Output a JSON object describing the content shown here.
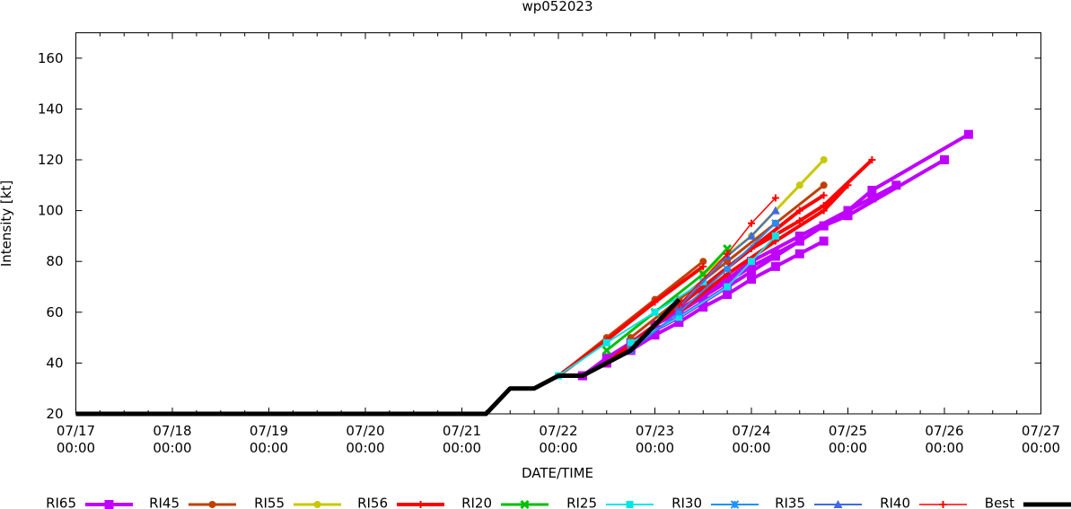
{
  "chart_data": {
    "type": "line",
    "title": "wp052023",
    "xlabel": "DATE/TIME",
    "ylabel": "Intensity [kt]",
    "ylim": [
      20,
      170
    ],
    "xlim": [
      "07/17 00:00",
      "07/27 00:00"
    ],
    "yticks": [
      20,
      40,
      60,
      80,
      100,
      120,
      140,
      160
    ],
    "xticks": [
      {
        "top": "07/17",
        "bottom": "00:00"
      },
      {
        "top": "07/18",
        "bottom": "00:00"
      },
      {
        "top": "07/19",
        "bottom": "00:00"
      },
      {
        "top": "07/20",
        "bottom": "00:00"
      },
      {
        "top": "07/21",
        "bottom": "00:00"
      },
      {
        "top": "07/22",
        "bottom": "00:00"
      },
      {
        "top": "07/23",
        "bottom": "00:00"
      },
      {
        "top": "07/24",
        "bottom": "00:00"
      },
      {
        "top": "07/25",
        "bottom": "00:00"
      },
      {
        "top": "07/26",
        "bottom": "00:00"
      },
      {
        "top": "07/27",
        "bottom": "00:00"
      }
    ],
    "grid": false,
    "legend_position": "bottom",
    "x_units": "days since 07/17 00:00",
    "series": [
      {
        "name": "RI65",
        "color": "#bf00ff",
        "marker": "square",
        "width": 4,
        "lines": [
          [
            [
              5.25,
              35
            ],
            [
              5.5,
              40
            ],
            [
              5.75,
              45
            ],
            [
              6.0,
              51
            ],
            [
              6.25,
              56
            ],
            [
              6.5,
              62
            ],
            [
              6.75,
              67
            ],
            [
              7.0,
              73
            ],
            [
              7.25,
              78
            ],
            [
              7.5,
              83
            ],
            [
              7.75,
              88
            ]
          ],
          [
            [
              5.25,
              35
            ],
            [
              5.5,
              42
            ],
            [
              5.75,
              48
            ],
            [
              6.0,
              55
            ],
            [
              6.25,
              60
            ],
            [
              6.5,
              66
            ],
            [
              6.75,
              72
            ],
            [
              7.0,
              78
            ],
            [
              7.25,
              83
            ],
            [
              7.5,
              88
            ],
            [
              7.75,
              94
            ],
            [
              8.0,
              100
            ],
            [
              8.25,
              105
            ],
            [
              8.5,
              110
            ]
          ],
          [
            [
              5.5,
              40
            ],
            [
              5.75,
              46
            ],
            [
              6.0,
              53
            ],
            [
              6.25,
              58
            ],
            [
              6.5,
              64
            ],
            [
              6.75,
              70
            ],
            [
              7.0,
              76
            ],
            [
              7.25,
              82
            ],
            [
              7.5,
              88
            ],
            [
              7.75,
              94
            ],
            [
              8.0,
              98
            ],
            [
              9.0,
              120
            ]
          ],
          [
            [
              5.75,
              45
            ],
            [
              6.0,
              55
            ],
            [
              6.25,
              61
            ],
            [
              6.5,
              67
            ],
            [
              6.75,
              73
            ],
            [
              7.0,
              80
            ],
            [
              7.5,
              90
            ],
            [
              8.0,
              100
            ],
            [
              8.25,
              108
            ],
            [
              9.25,
              130
            ]
          ]
        ]
      },
      {
        "name": "RI45",
        "color": "#c04000",
        "marker": "circle",
        "width": 3,
        "lines": [
          [
            [
              5.0,
              35
            ],
            [
              5.5,
              50
            ],
            [
              6.0,
              65
            ],
            [
              6.5,
              80
            ]
          ],
          [
            [
              5.75,
              50
            ],
            [
              6.25,
              65
            ],
            [
              6.75,
              80
            ],
            [
              7.25,
              95
            ],
            [
              7.75,
              110
            ]
          ]
        ]
      },
      {
        "name": "RI55",
        "color": "#c8c800",
        "marker": "circle",
        "width": 3,
        "lines": [
          [
            [
              6.5,
              75
            ],
            [
              7.0,
              90
            ],
            [
              7.5,
              110
            ],
            [
              7.75,
              120
            ]
          ]
        ]
      },
      {
        "name": "RI56",
        "color": "#ff0000",
        "marker": "plus",
        "width": 4,
        "lines": [
          [
            [
              5.0,
              35
            ],
            [
              5.5,
              49
            ],
            [
              6.0,
              64
            ],
            [
              6.5,
              78
            ]
          ],
          [
            [
              5.5,
              40
            ],
            [
              6.0,
              55
            ],
            [
              6.5,
              70
            ],
            [
              7.0,
              85
            ],
            [
              7.5,
              100
            ],
            [
              7.75,
              106
            ]
          ],
          [
            [
              6.0,
              55
            ],
            [
              6.5,
              70
            ],
            [
              7.0,
              85
            ],
            [
              7.5,
              96
            ],
            [
              7.75,
              102
            ],
            [
              8.25,
              120
            ]
          ],
          [
            [
              6.25,
              60
            ],
            [
              6.75,
              75
            ],
            [
              7.25,
              88
            ],
            [
              7.75,
              100
            ],
            [
              8.0,
              110
            ]
          ]
        ]
      },
      {
        "name": "RI20",
        "color": "#00c000",
        "marker": "cross",
        "width": 3,
        "lines": [
          [
            [
              5.5,
              45
            ],
            [
              6.0,
              60
            ],
            [
              6.5,
              75
            ],
            [
              6.75,
              85
            ]
          ]
        ]
      },
      {
        "name": "RI25",
        "color": "#00e5e5",
        "marker": "square",
        "width": 2,
        "lines": [
          [
            [
              5.0,
              35
            ],
            [
              5.5,
              48
            ],
            [
              6.0,
              60
            ],
            [
              6.5,
              72
            ]
          ],
          [
            [
              5.75,
              48
            ],
            [
              6.25,
              58
            ],
            [
              6.75,
              70
            ],
            [
              7.0,
              80
            ],
            [
              7.25,
              90
            ]
          ]
        ]
      },
      {
        "name": "RI30",
        "color": "#1e90ff",
        "marker": "star",
        "width": 2,
        "lines": [
          [
            [
              5.75,
              45
            ],
            [
              6.25,
              60
            ],
            [
              6.75,
              77
            ],
            [
              7.25,
              95
            ]
          ]
        ]
      },
      {
        "name": "RI35",
        "color": "#4169e1",
        "marker": "triangle",
        "width": 2,
        "lines": [
          [
            [
              6.25,
              62
            ],
            [
              6.75,
              82
            ],
            [
              7.0,
              90
            ],
            [
              7.25,
              100
            ]
          ]
        ]
      },
      {
        "name": "RI40",
        "color": "#ff0000",
        "marker": "plus",
        "width": 1.5,
        "lines": [
          [
            [
              6.25,
              63
            ],
            [
              6.75,
              83
            ],
            [
              7.0,
              95
            ],
            [
              7.25,
              105
            ]
          ]
        ]
      },
      {
        "name": "Best",
        "color": "#000000",
        "marker": "none",
        "width": 5,
        "lines": [
          [
            [
              0,
              20
            ],
            [
              4.25,
              20
            ],
            [
              4.5,
              30
            ],
            [
              4.75,
              30
            ],
            [
              5.0,
              35
            ],
            [
              5.25,
              35
            ],
            [
              5.5,
              40
            ],
            [
              5.75,
              45
            ],
            [
              6.0,
              55
            ],
            [
              6.25,
              65
            ]
          ]
        ]
      }
    ]
  },
  "legend": [
    {
      "label": "RI65"
    },
    {
      "label": "RI45"
    },
    {
      "label": "RI55"
    },
    {
      "label": "RI56"
    },
    {
      "label": "RI20"
    },
    {
      "label": "RI25"
    },
    {
      "label": "RI30"
    },
    {
      "label": "RI35"
    },
    {
      "label": "RI40"
    },
    {
      "label": "Best"
    }
  ]
}
